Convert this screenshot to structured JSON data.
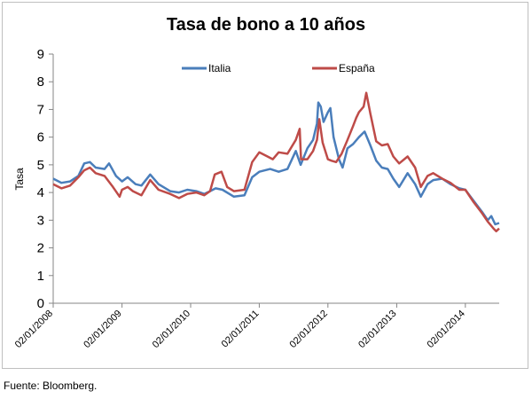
{
  "chart_data": {
    "type": "line",
    "title": "Tasa de bono a 10 años",
    "ylabel": "Tasa",
    "xlabel": "",
    "ylim": [
      0,
      9
    ],
    "yticks": [
      "0",
      "1",
      "2",
      "3",
      "4",
      "5",
      "6",
      "7",
      "8",
      "9"
    ],
    "xlim": [
      "2008-01-02",
      "2014-07-01"
    ],
    "xticks": [
      "02/01/2008",
      "02/01/2009",
      "02/01/2010",
      "02/01/2011",
      "02/01/2012",
      "02/01/2013",
      "02/01/2014"
    ],
    "xtick_dates": [
      "2008-01-02",
      "2009-01-02",
      "2010-01-02",
      "2011-01-02",
      "2012-01-02",
      "2013-01-02",
      "2014-01-02"
    ],
    "grid": false,
    "legend_position": "top",
    "series": [
      {
        "name": "Italia",
        "color": "#4a7ebb",
        "points": [
          [
            "2008-01-02",
            4.5
          ],
          [
            "2008-02-15",
            4.35
          ],
          [
            "2008-04-01",
            4.4
          ],
          [
            "2008-05-15",
            4.6
          ],
          [
            "2008-06-15",
            5.05
          ],
          [
            "2008-07-15",
            5.1
          ],
          [
            "2008-08-15",
            4.9
          ],
          [
            "2008-10-01",
            4.85
          ],
          [
            "2008-10-25",
            5.05
          ],
          [
            "2008-12-01",
            4.6
          ],
          [
            "2009-01-02",
            4.4
          ],
          [
            "2009-02-01",
            4.55
          ],
          [
            "2009-03-15",
            4.3
          ],
          [
            "2009-04-15",
            4.25
          ],
          [
            "2009-06-01",
            4.65
          ],
          [
            "2009-07-15",
            4.3
          ],
          [
            "2009-09-15",
            4.05
          ],
          [
            "2009-11-01",
            4.0
          ],
          [
            "2009-12-15",
            4.1
          ],
          [
            "2010-02-01",
            4.05
          ],
          [
            "2010-03-15",
            3.95
          ],
          [
            "2010-04-15",
            4.05
          ],
          [
            "2010-05-15",
            4.15
          ],
          [
            "2010-06-20",
            4.1
          ],
          [
            "2010-08-20",
            3.85
          ],
          [
            "2010-10-15",
            3.9
          ],
          [
            "2010-11-25",
            4.55
          ],
          [
            "2011-01-02",
            4.75
          ],
          [
            "2011-03-01",
            4.85
          ],
          [
            "2011-04-15",
            4.75
          ],
          [
            "2011-06-01",
            4.85
          ],
          [
            "2011-07-15",
            5.5
          ],
          [
            "2011-08-10",
            5.0
          ],
          [
            "2011-09-15",
            5.6
          ],
          [
            "2011-10-15",
            5.9
          ],
          [
            "2011-11-05",
            6.5
          ],
          [
            "2011-11-12",
            7.25
          ],
          [
            "2011-11-25",
            7.1
          ],
          [
            "2011-12-10",
            6.55
          ],
          [
            "2012-01-02",
            6.9
          ],
          [
            "2012-01-15",
            7.05
          ],
          [
            "2012-02-01",
            6.0
          ],
          [
            "2012-03-01",
            5.2
          ],
          [
            "2012-03-20",
            4.9
          ],
          [
            "2012-04-15",
            5.6
          ],
          [
            "2012-05-15",
            5.75
          ],
          [
            "2012-06-15",
            6.0
          ],
          [
            "2012-07-15",
            6.2
          ],
          [
            "2012-08-15",
            5.7
          ],
          [
            "2012-09-15",
            5.15
          ],
          [
            "2012-10-15",
            4.9
          ],
          [
            "2012-11-15",
            4.85
          ],
          [
            "2012-12-15",
            4.5
          ],
          [
            "2013-01-15",
            4.2
          ],
          [
            "2013-03-01",
            4.7
          ],
          [
            "2013-04-10",
            4.3
          ],
          [
            "2013-05-10",
            3.85
          ],
          [
            "2013-06-15",
            4.3
          ],
          [
            "2013-07-15",
            4.45
          ],
          [
            "2013-09-01",
            4.5
          ],
          [
            "2013-10-15",
            4.3
          ],
          [
            "2013-12-01",
            4.15
          ],
          [
            "2014-01-02",
            4.1
          ],
          [
            "2014-02-15",
            3.7
          ],
          [
            "2014-04-01",
            3.3
          ],
          [
            "2014-05-01",
            3.0
          ],
          [
            "2014-05-20",
            3.15
          ],
          [
            "2014-06-10",
            2.85
          ],
          [
            "2014-07-01",
            2.9
          ]
        ]
      },
      {
        "name": "España",
        "color": "#be4b48",
        "points": [
          [
            "2008-01-02",
            4.3
          ],
          [
            "2008-02-15",
            4.15
          ],
          [
            "2008-04-01",
            4.25
          ],
          [
            "2008-05-15",
            4.55
          ],
          [
            "2008-06-15",
            4.8
          ],
          [
            "2008-07-15",
            4.9
          ],
          [
            "2008-08-15",
            4.7
          ],
          [
            "2008-10-01",
            4.6
          ],
          [
            "2008-11-15",
            4.2
          ],
          [
            "2008-12-20",
            3.85
          ],
          [
            "2009-01-02",
            4.1
          ],
          [
            "2009-02-01",
            4.2
          ],
          [
            "2009-03-01",
            4.05
          ],
          [
            "2009-04-15",
            3.9
          ],
          [
            "2009-06-01",
            4.45
          ],
          [
            "2009-07-15",
            4.1
          ],
          [
            "2009-09-15",
            3.95
          ],
          [
            "2009-11-01",
            3.8
          ],
          [
            "2009-12-15",
            3.95
          ],
          [
            "2010-02-01",
            4.0
          ],
          [
            "2010-03-15",
            3.9
          ],
          [
            "2010-04-15",
            4.05
          ],
          [
            "2010-05-10",
            4.65
          ],
          [
            "2010-06-15",
            4.75
          ],
          [
            "2010-07-15",
            4.2
          ],
          [
            "2010-08-20",
            4.05
          ],
          [
            "2010-10-15",
            4.1
          ],
          [
            "2010-11-25",
            5.1
          ],
          [
            "2011-01-02",
            5.45
          ],
          [
            "2011-02-15",
            5.3
          ],
          [
            "2011-03-15",
            5.2
          ],
          [
            "2011-04-15",
            5.45
          ],
          [
            "2011-06-01",
            5.4
          ],
          [
            "2011-07-15",
            5.9
          ],
          [
            "2011-08-05",
            6.3
          ],
          [
            "2011-08-12",
            5.2
          ],
          [
            "2011-09-15",
            5.2
          ],
          [
            "2011-10-15",
            5.5
          ],
          [
            "2011-11-05",
            5.9
          ],
          [
            "2011-11-17",
            6.65
          ],
          [
            "2011-12-05",
            5.8
          ],
          [
            "2012-01-02",
            5.2
          ],
          [
            "2012-01-20",
            5.15
          ],
          [
            "2012-02-15",
            5.1
          ],
          [
            "2012-03-15",
            5.4
          ],
          [
            "2012-04-15",
            5.9
          ],
          [
            "2012-05-15",
            6.4
          ],
          [
            "2012-06-01",
            6.7
          ],
          [
            "2012-06-15",
            6.9
          ],
          [
            "2012-07-10",
            7.1
          ],
          [
            "2012-07-24",
            7.6
          ],
          [
            "2012-08-15",
            6.85
          ],
          [
            "2012-09-15",
            5.85
          ],
          [
            "2012-10-15",
            5.7
          ],
          [
            "2012-11-15",
            5.75
          ],
          [
            "2012-12-15",
            5.3
          ],
          [
            "2013-01-15",
            5.05
          ],
          [
            "2013-03-01",
            5.3
          ],
          [
            "2013-04-10",
            4.9
          ],
          [
            "2013-05-10",
            4.2
          ],
          [
            "2013-06-15",
            4.6
          ],
          [
            "2013-07-15",
            4.7
          ],
          [
            "2013-09-01",
            4.5
          ],
          [
            "2013-10-15",
            4.35
          ],
          [
            "2013-12-01",
            4.1
          ],
          [
            "2014-01-02",
            4.1
          ],
          [
            "2014-02-15",
            3.65
          ],
          [
            "2014-04-01",
            3.25
          ],
          [
            "2014-05-01",
            2.95
          ],
          [
            "2014-06-01",
            2.7
          ],
          [
            "2014-06-15",
            2.6
          ],
          [
            "2014-07-01",
            2.7
          ]
        ]
      }
    ]
  },
  "footer": {
    "source": "Fuente: Bloomberg."
  }
}
